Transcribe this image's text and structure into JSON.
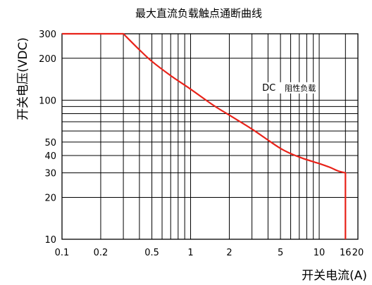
{
  "chart_data": {
    "type": "line",
    "title": "最大直流负载触点通断曲线",
    "xlabel": "开关电流(A)",
    "ylabel": "开关电压(VDC)",
    "x_scale": "log",
    "y_scale": "log",
    "xlim": [
      0.1,
      20
    ],
    "ylim": [
      10,
      300
    ],
    "x_ticks": [
      0.1,
      0.2,
      0.5,
      1,
      2,
      5,
      10,
      16,
      20
    ],
    "x_tick_labels": [
      "0.1",
      "0.2",
      "0.5",
      "1",
      "2",
      "5",
      "10",
      "16",
      "20"
    ],
    "y_ticks": [
      10,
      20,
      30,
      40,
      50,
      100,
      200,
      300
    ],
    "y_tick_labels": [
      "10",
      "20",
      "30",
      "40",
      "50",
      "100",
      "200",
      "300"
    ],
    "x_gridlines": [
      0.1,
      0.2,
      0.3,
      0.4,
      0.5,
      0.6,
      0.7,
      0.8,
      0.9,
      1,
      2,
      3,
      4,
      5,
      6,
      7,
      8,
      9,
      10,
      16,
      20
    ],
    "y_gridlines": [
      10,
      20,
      30,
      40,
      50,
      60,
      70,
      80,
      90,
      100,
      200,
      300
    ],
    "grid": true,
    "series": [
      {
        "name": "DC阻性负载",
        "color": "#e8231a",
        "x": [
          0.1,
          0.3,
          0.4,
          0.5,
          0.7,
          1,
          1.5,
          2,
          3,
          5,
          7,
          10,
          12,
          14,
          16,
          16
        ],
        "y": [
          300,
          300,
          230,
          190,
          150,
          120,
          92,
          78,
          62,
          45,
          39,
          35,
          33,
          31,
          30,
          10
        ]
      }
    ],
    "annotations": [
      {
        "text": "DC",
        "x": 3.6,
        "y": 117
      },
      {
        "text": "阻性负载",
        "x": 5.4,
        "y": 117
      }
    ]
  }
}
